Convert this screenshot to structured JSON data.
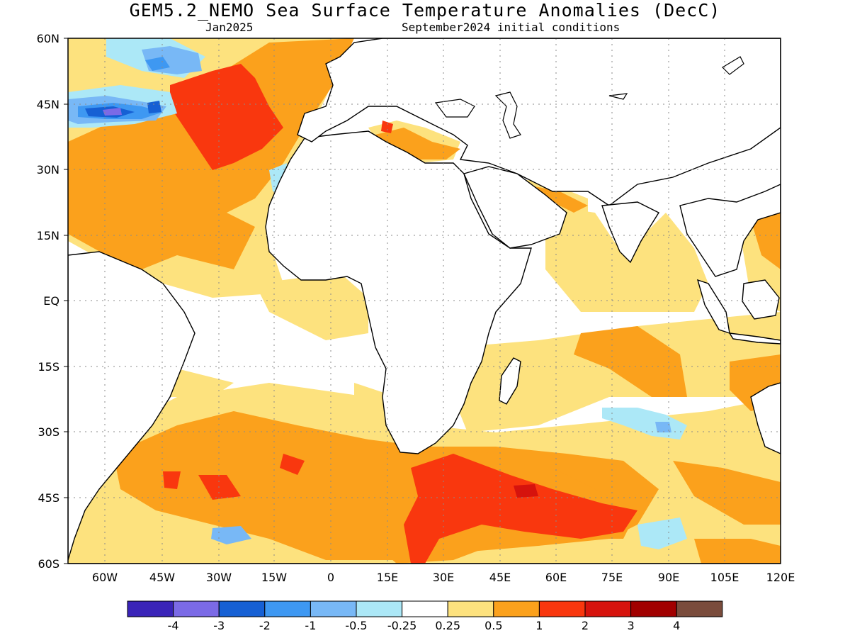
{
  "header": {
    "title": "GEM5.2_NEMO Sea Surface Temperature Anomalies (DecC)",
    "valid_label": "Jan2025",
    "init_label": "September2024 initial conditions"
  },
  "map": {
    "lat_labels": [
      "60N",
      "45N",
      "30N",
      "15N",
      "EQ",
      "15S",
      "30S",
      "45S",
      "60S"
    ],
    "lon_labels": [
      "60W",
      "45W",
      "30W",
      "15W",
      "0",
      "15E",
      "30E",
      "45E",
      "60E",
      "75E",
      "90E",
      "105E",
      "120E"
    ],
    "background": "#ffffff",
    "land_color": "#ffffff",
    "coastline_color": "#000000",
    "grid_style": "dotted"
  },
  "legend": {
    "colors": [
      "#3a24b8",
      "#7b6ae6",
      "#1660d4",
      "#3e98f2",
      "#78b8f6",
      "#ace8f7",
      "#ffffff",
      "#fde27e",
      "#fba11c",
      "#f9370e",
      "#d6130d",
      "#a10000",
      "#7a4c3c"
    ],
    "tick_labels": [
      "-4",
      "-3",
      "-2",
      "-1",
      "-0.5",
      "-0.25",
      "0.25",
      "0.5",
      "1",
      "2",
      "3",
      "4"
    ]
  }
}
